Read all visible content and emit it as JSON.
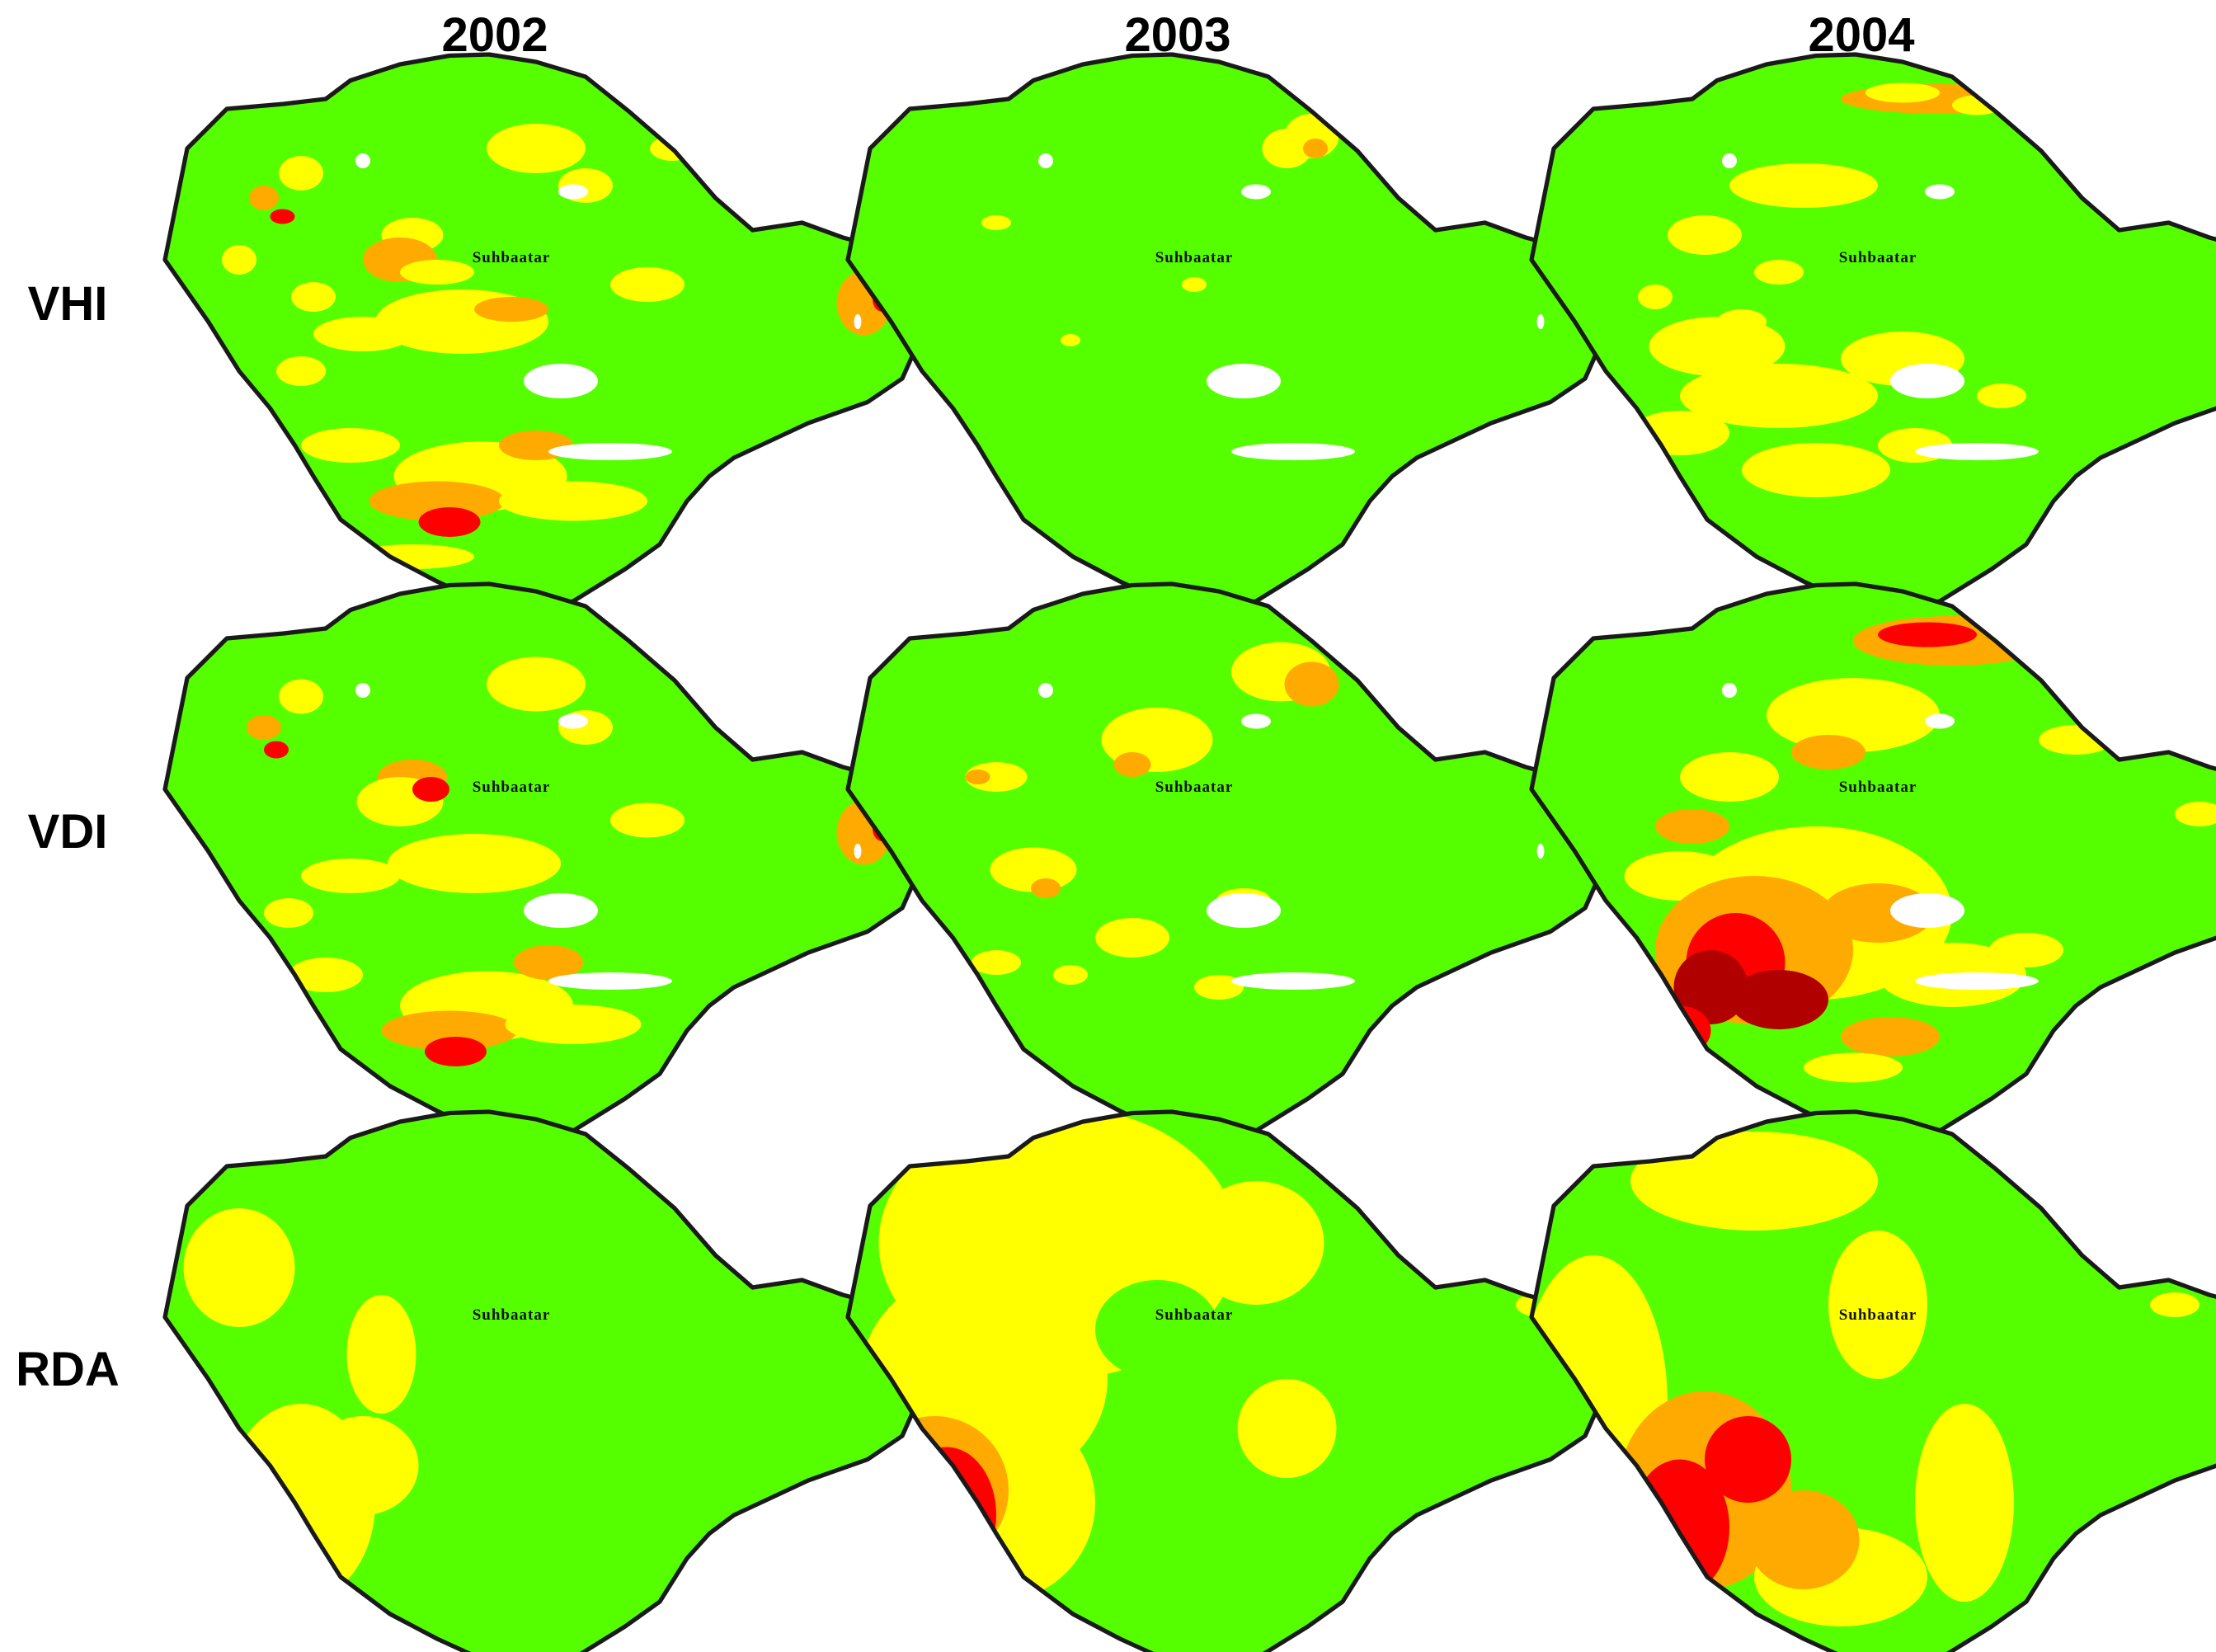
{
  "columns": [
    "2002",
    "2003",
    "2004"
  ],
  "rows": [
    "VHI",
    "VDI",
    "RDA"
  ],
  "map_label": "Suhbaatar",
  "colors": {
    "base": "#55ff00",
    "yellow": "#ffff00",
    "orange": "#ffaa00",
    "red": "#ff0000",
    "darkred": "#b00000",
    "white": "#ffffff",
    "outline": "#1a1a1a"
  },
  "panels": [
    {
      "row": 0,
      "col": 0,
      "index": "VHI",
      "year": "2002"
    },
    {
      "row": 0,
      "col": 1,
      "index": "VHI",
      "year": "2003"
    },
    {
      "row": 0,
      "col": 2,
      "index": "VHI",
      "year": "2004"
    },
    {
      "row": 1,
      "col": 0,
      "index": "VDI",
      "year": "2002"
    },
    {
      "row": 1,
      "col": 1,
      "index": "VDI",
      "year": "2003"
    },
    {
      "row": 1,
      "col": 2,
      "index": "VDI",
      "year": "2004"
    },
    {
      "row": 2,
      "col": 0,
      "index": "RDA",
      "year": "2002"
    },
    {
      "row": 2,
      "col": 1,
      "index": "RDA",
      "year": "2003"
    },
    {
      "row": 2,
      "col": 2,
      "index": "RDA",
      "year": "2004"
    }
  ]
}
